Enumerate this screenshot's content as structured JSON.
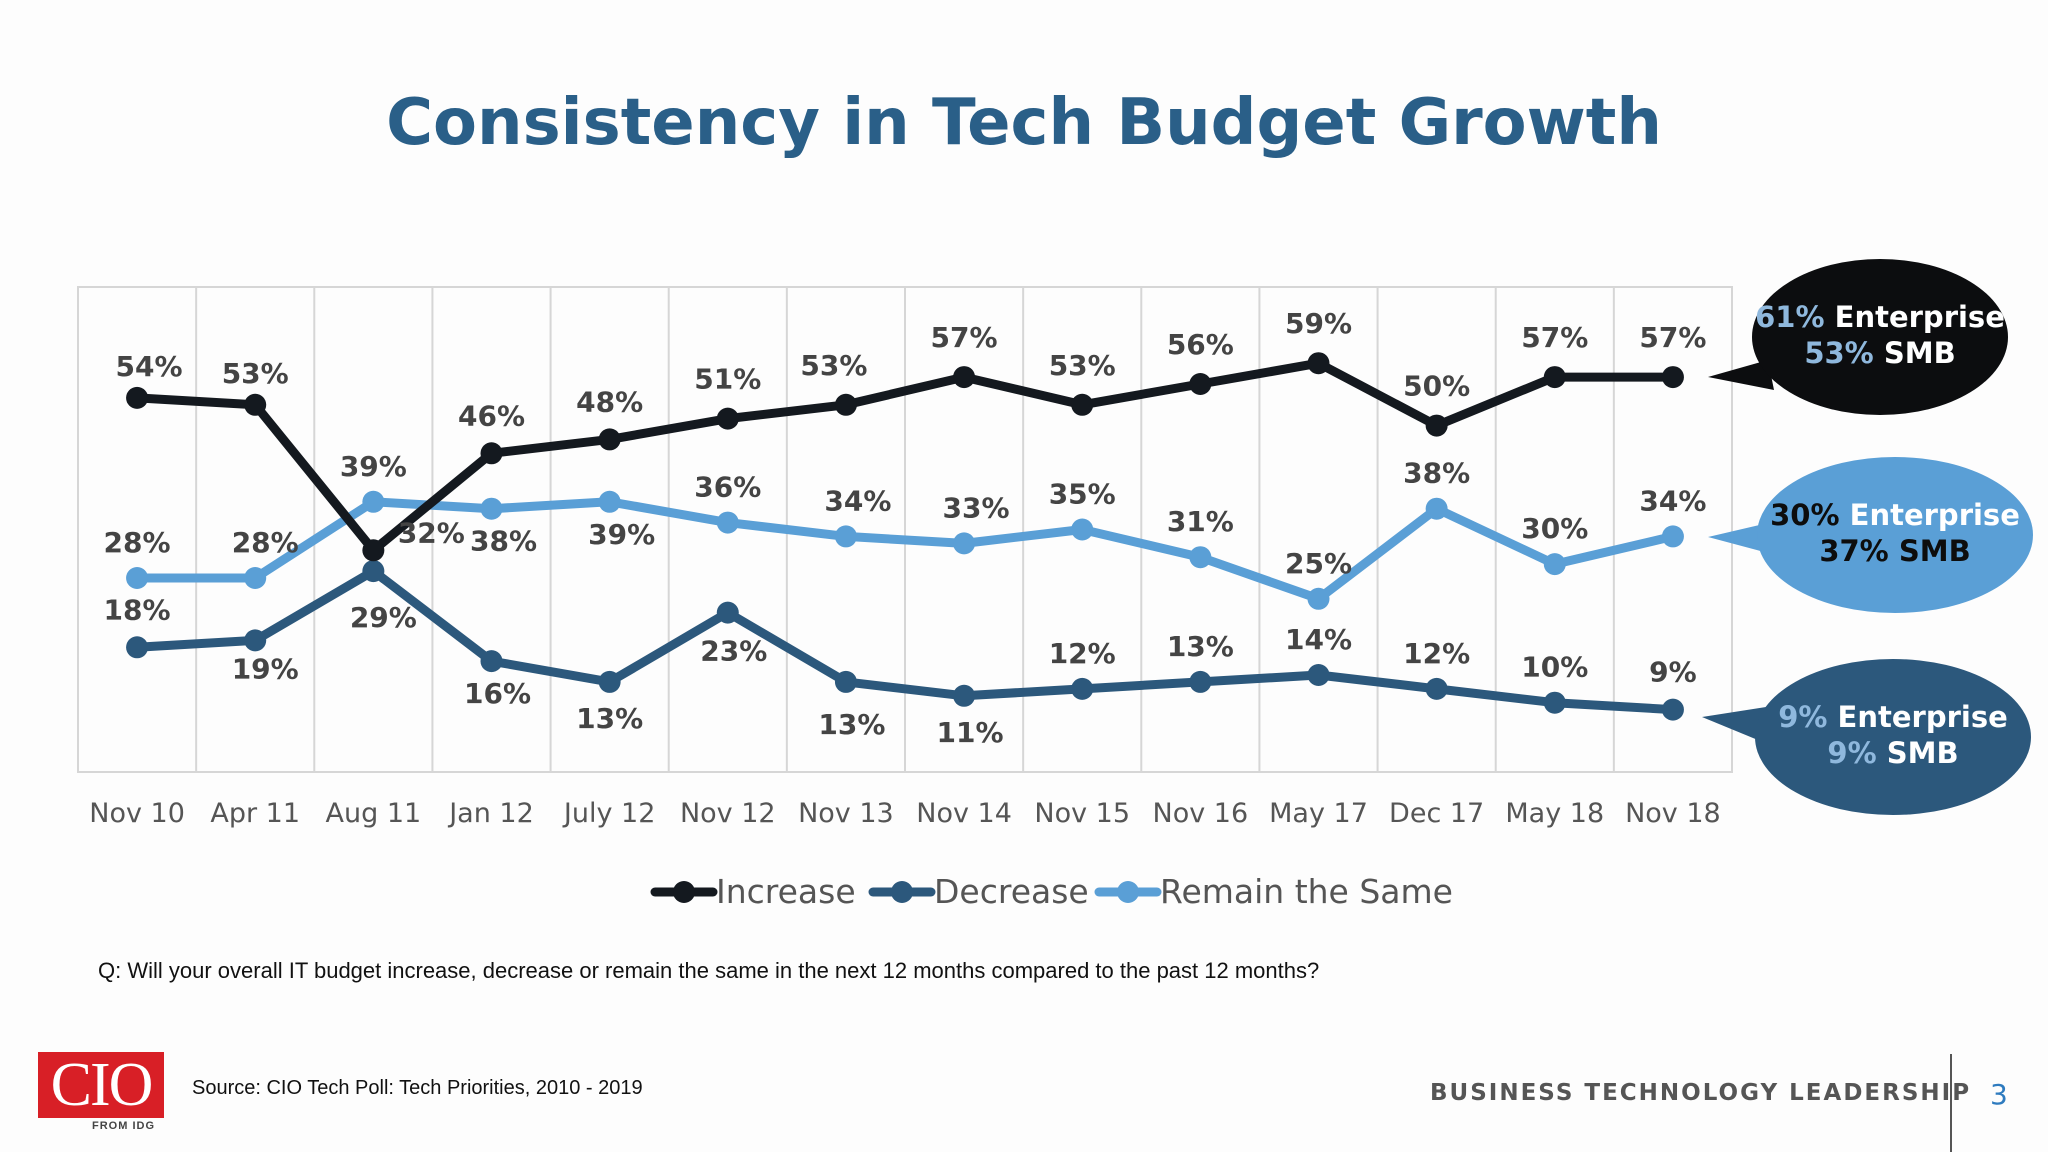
{
  "slide": {
    "title": "Consistency in Tech Budget Growth",
    "question": "Q: Will your overall IT budget increase, decrease or remain the same in the next 12 months compared to the past 12 months?",
    "source": "Source: CIO Tech Poll: Tech Priorities, 2010 - 2019",
    "logo": {
      "text": "CIO",
      "subtext": "FROM IDG",
      "color": "#d81f26"
    },
    "tagline": "BUSINESS TECHNOLOGY LEADERSHIP",
    "page_number": "3"
  },
  "chart_data": {
    "type": "line",
    "title": "Consistency in Tech Budget Growth",
    "categories": [
      "Nov 10",
      "Apr 11",
      "Aug 11",
      "Jan 12",
      "July 12",
      "Nov 12",
      "Nov 13",
      "Nov 14",
      "Nov 15",
      "Nov 16",
      "May 17",
      "Dec 17",
      "May 18",
      "Nov 18"
    ],
    "ylim": [
      0,
      70
    ],
    "grid": "vertical",
    "legend": "bottom-center",
    "series": [
      {
        "name": "Increase",
        "color": "#14191f",
        "values": [
          54,
          53,
          32,
          46,
          48,
          51,
          53,
          57,
          53,
          56,
          59,
          50,
          57,
          57
        ],
        "labels": [
          "54%",
          "53%",
          "32%",
          "46%",
          "48%",
          "51%",
          "53%",
          "57%",
          "53%",
          "56%",
          "59%",
          "50%",
          "57%",
          "57%"
        ]
      },
      {
        "name": "Decrease",
        "color": "#2c587c",
        "values": [
          18,
          19,
          29,
          16,
          13,
          23,
          13,
          11,
          12,
          13,
          14,
          12,
          10,
          9
        ],
        "labels": [
          "18%",
          "19%",
          "29%",
          "16%",
          "13%",
          "23%",
          "13%",
          "11%",
          "12%",
          "13%",
          "14%",
          "12%",
          "10%",
          "9%"
        ]
      },
      {
        "name": "Remain the Same",
        "color": "#5a9fd6",
        "values": [
          28,
          28,
          39,
          38,
          39,
          36,
          34,
          33,
          35,
          31,
          25,
          38,
          30,
          34
        ],
        "labels": [
          "28%",
          "28%",
          "39%",
          "38%",
          "39%",
          "36%",
          "34%",
          "33%",
          "35%",
          "31%",
          "25%",
          "38%",
          "30%",
          "34%"
        ]
      }
    ],
    "callouts": [
      {
        "series": "Increase",
        "bg": "#0c0d0f",
        "line1_value": "61%",
        "line1_text": " Enterprise",
        "line1_value_color": "#8fb8dd",
        "line1_text_color": "#ffffff",
        "line2_value": "53%",
        "line2_text": " SMB",
        "line2_value_color": "#8fb8dd",
        "line2_text_color": "#ffffff"
      },
      {
        "series": "Remain the Same",
        "bg": "#5a9fd6",
        "line1_value": "30%",
        "line1_text": " Enterprise",
        "line1_value_color": "#0d0d0d",
        "line1_text_color": "#ffffff",
        "line2_value": "37%",
        "line2_text": " SMB",
        "line2_value_color": "#0d0d0d",
        "line2_text_color": "#0d0d0d"
      },
      {
        "series": "Decrease",
        "bg": "#2c587c",
        "line1_value": "9%",
        "line1_text": " Enterprise",
        "line1_value_color": "#8fb8dd",
        "line1_text_color": "#ffffff",
        "line2_value": "9%",
        "line2_text": " SMB",
        "line2_value_color": "#8fb8dd",
        "line2_text_color": "#ffffff"
      }
    ]
  }
}
